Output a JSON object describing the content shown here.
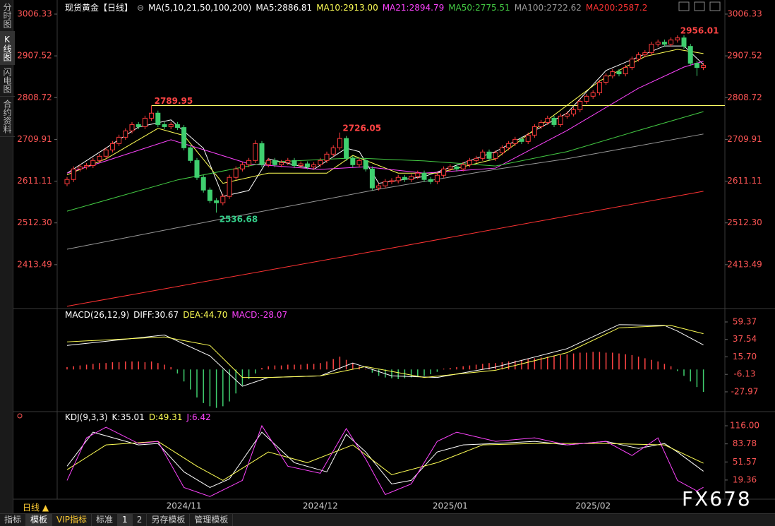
{
  "sidebar": [
    "分时图",
    "K线图",
    "闪电图",
    "合约资料"
  ],
  "period": "日线 ▲",
  "toolbar": [
    "指标",
    "模板",
    "VIP指标",
    "标准",
    "1",
    "2",
    "另存模板",
    "管理模板"
  ],
  "watermark": "FX678",
  "chart_data": [
    {
      "type": "candlestick",
      "title": "现货黄金【日线】",
      "indicator": "MA(5,10,21,50,100,200)",
      "categories": [
        null,
        null,
        null,
        null,
        null,
        null,
        null,
        null,
        null,
        null,
        null,
        null,
        null,
        null,
        null,
        null,
        null,
        null,
        "2024/11",
        null,
        null,
        null,
        null,
        null,
        null,
        null,
        null,
        null,
        null,
        null,
        null,
        null,
        null,
        null,
        null,
        null,
        null,
        null,
        null,
        "2024/12",
        null,
        null,
        null,
        null,
        null,
        null,
        null,
        null,
        null,
        null,
        null,
        null,
        null,
        null,
        null,
        null,
        null,
        null,
        null,
        "2025/01",
        null,
        null,
        null,
        null,
        null,
        null,
        null,
        null,
        null,
        null,
        null,
        null,
        null,
        null,
        null,
        null,
        null,
        null,
        null,
        null,
        null,
        "2025/02",
        null,
        null,
        null,
        null,
        null,
        null,
        null,
        null,
        null,
        null,
        null,
        null,
        null,
        null,
        null,
        null,
        null
      ],
      "open": [
        2605,
        2615,
        2640,
        2645,
        2648,
        2660,
        2670,
        2685,
        2700,
        2715,
        2730,
        2745,
        2740,
        2760,
        2772,
        2745,
        2740,
        2745,
        2738,
        2690,
        2660,
        2620,
        2590,
        2565,
        2560,
        2575,
        2620,
        2640,
        2650,
        2660,
        2700,
        2650,
        2660,
        2650,
        2655,
        2660,
        2648,
        2652,
        2645,
        2650,
        2660,
        2675,
        2690,
        2712,
        2665,
        2650,
        2660,
        2640,
        2595,
        2600,
        2610,
        2612,
        2620,
        2615,
        2622,
        2630,
        2615,
        2610,
        2625,
        2640,
        2645,
        2640,
        2650,
        2660,
        2665,
        2680,
        2665,
        2678,
        2690,
        2700,
        2710,
        2705,
        2720,
        2740,
        2750,
        2760,
        2745,
        2765,
        2770,
        2780,
        2800,
        2812,
        2820,
        2845,
        2860,
        2870,
        2865,
        2880,
        2900,
        2910,
        2915,
        2935,
        2940,
        2935,
        2945,
        2950,
        2930,
        2890,
        2880
      ],
      "high": [
        2621,
        2646,
        2651,
        2654,
        2666,
        2676,
        2691,
        2706,
        2721,
        2736,
        2751,
        2751,
        2766,
        2789.95,
        2778,
        2751,
        2751,
        2751,
        2744,
        2696,
        2666,
        2626,
        2596,
        2571,
        2581,
        2626,
        2646,
        2656,
        2666,
        2708,
        2706,
        2666,
        2666,
        2661,
        2666,
        2666,
        2658,
        2658,
        2656,
        2666,
        2681,
        2696,
        2726.05,
        2718,
        2671,
        2666,
        2666,
        2646,
        2606,
        2616,
        2618,
        2626,
        2626,
        2628,
        2636,
        2636,
        2621,
        2631,
        2646,
        2651,
        2651,
        2656,
        2666,
        2671,
        2686,
        2686,
        2684,
        2696,
        2706,
        2716,
        2716,
        2726,
        2746,
        2756,
        2766,
        2766,
        2771,
        2776,
        2786,
        2806,
        2818,
        2826,
        2851,
        2866,
        2876,
        2876,
        2886,
        2906,
        2916,
        2921,
        2941,
        2946,
        2946,
        2951,
        2956.01,
        2956,
        2936,
        2896,
        2891
      ],
      "low": [
        2599,
        2609,
        2634,
        2639,
        2642,
        2654,
        2664,
        2679,
        2694,
        2709,
        2724,
        2734,
        2734,
        2754,
        2739,
        2734,
        2734,
        2732,
        2684,
        2654,
        2614,
        2584,
        2559,
        2536.68,
        2554,
        2569,
        2614,
        2634,
        2644,
        2654,
        2644,
        2644,
        2644,
        2644,
        2649,
        2642,
        2642,
        2639,
        2639,
        2644,
        2654,
        2669,
        2684,
        2659,
        2644,
        2644,
        2634,
        2589,
        2589,
        2594,
        2604,
        2606,
        2609,
        2609,
        2616,
        2609,
        2604,
        2604,
        2619,
        2634,
        2634,
        2634,
        2644,
        2654,
        2659,
        2659,
        2659,
        2672,
        2684,
        2694,
        2699,
        2699,
        2714,
        2734,
        2744,
        2739,
        2739,
        2759,
        2764,
        2774,
        2794,
        2806,
        2814,
        2839,
        2854,
        2859,
        2859,
        2874,
        2894,
        2904,
        2909,
        2929,
        2929,
        2929,
        2939,
        2924,
        2884,
        2860,
        2874
      ],
      "close": [
        2615,
        2640,
        2645,
        2648,
        2660,
        2670,
        2685,
        2700,
        2715,
        2730,
        2745,
        2740,
        2760,
        2772,
        2745,
        2740,
        2745,
        2738,
        2690,
        2660,
        2620,
        2590,
        2565,
        2560,
        2575,
        2620,
        2640,
        2650,
        2660,
        2700,
        2650,
        2660,
        2650,
        2655,
        2660,
        2648,
        2652,
        2645,
        2650,
        2660,
        2675,
        2690,
        2712,
        2665,
        2650,
        2660,
        2640,
        2595,
        2600,
        2610,
        2612,
        2620,
        2615,
        2622,
        2630,
        2615,
        2610,
        2625,
        2640,
        2645,
        2640,
        2650,
        2660,
        2665,
        2680,
        2665,
        2678,
        2690,
        2700,
        2710,
        2705,
        2720,
        2740,
        2750,
        2760,
        2745,
        2765,
        2770,
        2780,
        2800,
        2812,
        2820,
        2845,
        2860,
        2870,
        2865,
        2880,
        2900,
        2910,
        2915,
        2935,
        2940,
        2935,
        2945,
        2950,
        2930,
        2890,
        2880,
        2885
      ],
      "up_color": "#ff3b3b",
      "down_color": "#3fcf6f",
      "label_up_color": "#ff4444",
      "label_down_color": "#33cc88",
      "hline_color": "#ffff66",
      "ylim": [
        2313,
        3023
      ],
      "yticks": [
        3006.33,
        2907.52,
        2808.72,
        2709.91,
        2611.11,
        {
          "value": 2512.3,
          "label": "2512.30"
        },
        2413.49
      ],
      "series": [
        {
          "name": "MA5:2886.81",
          "color": "#ffffff",
          "x": [
            0,
            11,
            16,
            21,
            24,
            28,
            31,
            38,
            43,
            45,
            48,
            55,
            66,
            77,
            83,
            92,
            95,
            98
          ],
          "values": [
            2630,
            2739,
            2756,
            2689,
            2575,
            2589,
            2664,
            2639,
            2689,
            2681,
            2606,
            2622,
            2681,
            2772,
            2873,
            2931,
            2931,
            2886.81
          ]
        },
        {
          "name": "MA10:2913.00",
          "color": "#ffff55",
          "x": [
            0,
            6,
            14,
            18,
            24,
            31,
            40,
            44,
            51,
            57,
            66,
            74,
            82,
            89,
            94,
            98
          ],
          "values": [
            2626,
            2664,
            2736,
            2719,
            2606,
            2630,
            2630,
            2672,
            2630,
            2630,
            2664,
            2756,
            2848,
            2906,
            2923,
            2913
          ]
        },
        {
          "name": "MA21:2894.79",
          "color": "#ff44ff",
          "x": [
            0,
            6,
            16,
            22,
            28,
            39,
            46,
            55,
            66,
            77,
            88,
            95,
            98
          ],
          "values": [
            2630,
            2659,
            2709,
            2681,
            2652,
            2639,
            2645,
            2630,
            2642,
            2731,
            2831,
            2881,
            2894.79
          ]
        },
        {
          "name": "MA50:2775.51",
          "color": "#44cc44",
          "x": [
            0,
            17,
            31,
            44,
            55,
            66,
            77,
            88,
            98
          ],
          "values": [
            2540,
            2614,
            2656,
            2666,
            2659,
            2647,
            2681,
            2731,
            2775.51
          ]
        },
        {
          "name": "MA100:2722.62",
          "color": "#999999",
          "x": [
            0,
            24,
            48,
            66,
            77,
            98
          ],
          "values": [
            2450,
            2522,
            2592,
            2639,
            2664,
            2722.62
          ]
        },
        {
          "name": "MA200:2587.2",
          "color": "#ff3333",
          "x": [
            0,
            49,
            98
          ],
          "values": [
            2315,
            2450,
            2587.2
          ]
        }
      ]
    },
    {
      "type": "macd",
      "title": "MACD(26,12,9)",
      "axis_color": "#ff5555",
      "values": [
        3,
        4,
        5,
        6,
        7,
        8,
        8,
        9,
        9,
        10,
        10,
        10,
        9,
        10,
        8,
        6,
        3,
        -5,
        -15,
        -25,
        -35,
        -42,
        -46,
        -48,
        -46,
        -40,
        -30,
        -20,
        -12,
        -5,
        2,
        4,
        5,
        5,
        6,
        6,
        6,
        7,
        7,
        8,
        10,
        13,
        16,
        12,
        8,
        4,
        1,
        -4,
        -8,
        -10,
        -11,
        -12,
        -11,
        -10,
        -9,
        -8,
        -6,
        -3,
        1,
        2,
        3,
        4,
        5,
        6,
        7,
        8,
        8,
        9,
        10,
        11,
        12,
        13,
        14,
        15,
        16,
        17,
        18,
        19,
        20,
        21,
        21,
        22,
        22,
        21,
        21,
        20,
        19,
        18,
        16,
        14,
        12,
        10,
        7,
        4,
        -2,
        -8,
        -15,
        -22,
        -28.07
      ],
      "up_color": "#ff4444",
      "down_color": "#3fcf6f",
      "ylim": [
        -48.3,
        73.5
      ],
      "yticks": [
        59.37,
        37.54,
        {
          "value": 15.7,
          "label": "15.70"
        },
        -6.13,
        -27.97
      ],
      "series": [
        {
          "name": "DIFF:30.67",
          "color": "#ffffff",
          "x": [
            0,
            15,
            22,
            27,
            31,
            39,
            44,
            50,
            57,
            66,
            77,
            85,
            92,
            94,
            98
          ],
          "values": [
            30,
            43,
            17,
            -21,
            -10,
            -8,
            8,
            -8,
            -10,
            3,
            26,
            56,
            55,
            48,
            30.67
          ]
        },
        {
          "name": "DEA:44.70",
          "color": "#ffff55",
          "x": [
            0,
            15,
            22,
            27,
            31,
            39,
            46,
            55,
            66,
            77,
            85,
            93,
            98
          ],
          "values": [
            34.5,
            40.6,
            30,
            -10,
            -10,
            -8,
            3.6,
            -10,
            -1,
            21,
            52,
            55,
            44.7
          ]
        },
        {
          "name": "MACD:-28.07",
          "color": "#ff44ff",
          "x": [],
          "values": []
        }
      ]
    },
    {
      "type": "line",
      "title": "KDJ(9,3,3)",
      "axis_color": "#ff5555",
      "ylim": [
        -12.2,
        132.4
      ],
      "yticks": [
        {
          "value": 116,
          "label": "116.00"
        },
        83.78,
        51.57,
        19.36
      ],
      "series": [
        {
          "name": "K:35.01",
          "color": "#ffffff",
          "x": [
            0,
            4,
            11,
            14,
            18,
            22,
            25,
            30,
            35,
            40,
            43,
            46,
            50,
            53,
            57,
            61,
            66,
            72,
            77,
            83,
            88,
            92,
            94,
            98
          ],
          "values": [
            44,
            104.6,
            81.9,
            84.4,
            33.9,
            6.1,
            21.3,
            104.6,
            50.3,
            33.9,
            100.8,
            69.3,
            12.4,
            18.7,
            69.3,
            81.9,
            84.4,
            88.2,
            81.9,
            88.2,
            75.6,
            84.4,
            69.3,
            35.01
          ]
        },
        {
          "name": "D:49.31",
          "color": "#ffff55",
          "x": [
            0,
            6,
            14,
            20,
            24,
            31,
            37,
            44,
            50,
            57,
            64,
            72,
            83,
            92,
            98
          ],
          "values": [
            37.7,
            81.9,
            88.2,
            44,
            18.7,
            69.3,
            50.3,
            81.9,
            28.9,
            50.3,
            81.9,
            84.4,
            84.4,
            81.9,
            49.31
          ]
        },
        {
          "name": "J:6.42",
          "color": "#ff44ff",
          "x": [
            0,
            3,
            6,
            11,
            14,
            18,
            22,
            27,
            30,
            34,
            39,
            43,
            46,
            49,
            53,
            57,
            60,
            66,
            72,
            77,
            83,
            87,
            91,
            94,
            97,
            98
          ],
          "values": [
            18.7,
            94.5,
            113.5,
            84.4,
            88.2,
            6.1,
            -10,
            18.7,
            116,
            44,
            31.4,
            111,
            56.6,
            -6.5,
            12.4,
            88.2,
            104.6,
            88.2,
            94.5,
            81.9,
            88.2,
            63,
            94.5,
            18.7,
            0,
            6.42
          ]
        }
      ]
    }
  ]
}
